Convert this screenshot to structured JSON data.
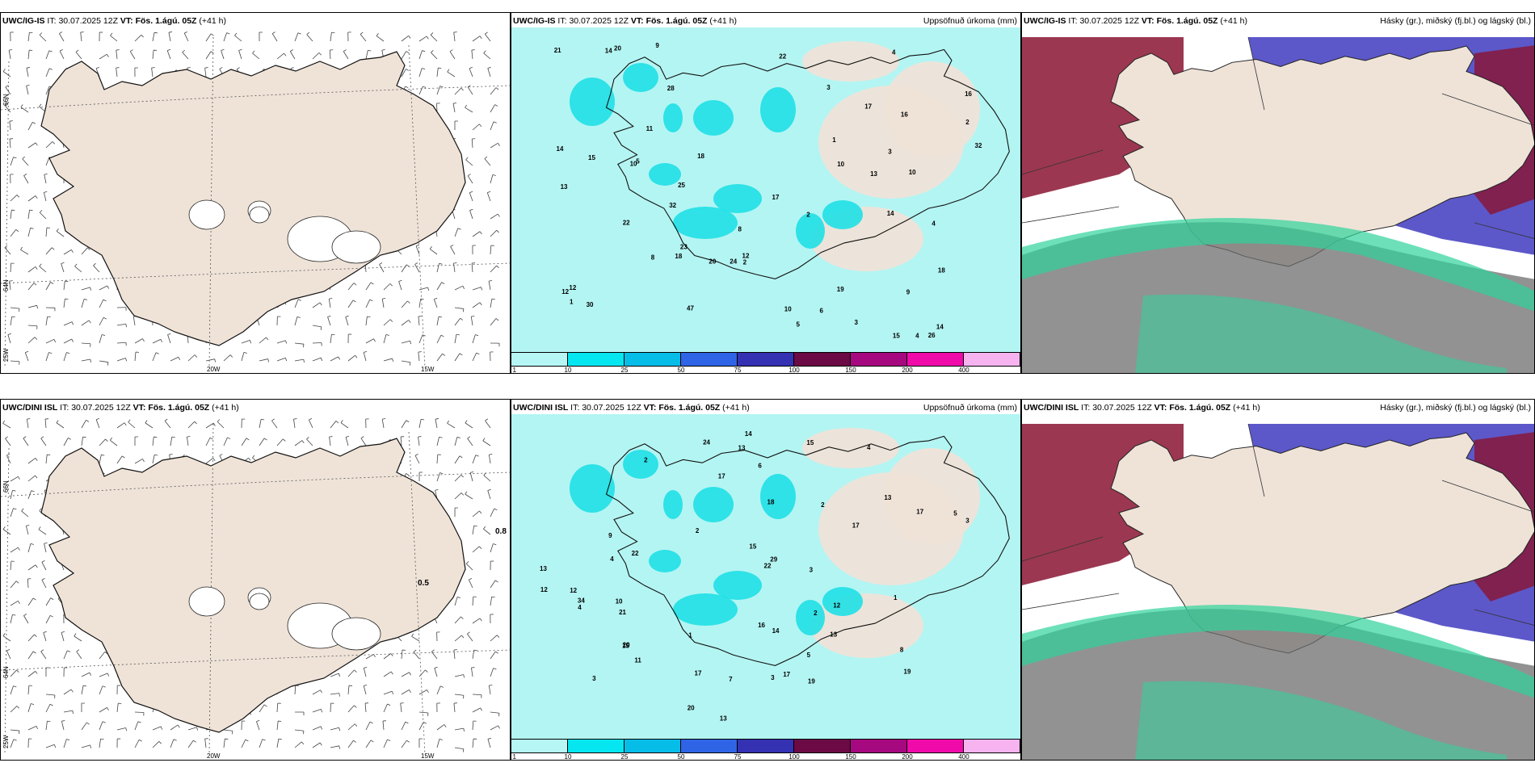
{
  "rows": [
    {
      "model": "UWC/IG-IS",
      "it_label": "IT:",
      "it_value": "30.07.2025 12Z",
      "vt_label": "VT:",
      "vt_value": "Fös. 1.ágú. 05Z",
      "lead": "(+41 h)",
      "wind_labels": []
    },
    {
      "model": "UWC/DINI ISL",
      "it_label": "IT:",
      "it_value": "30.07.2025 12Z",
      "vt_label": "VT:",
      "vt_value": "Fös. 1.ágú. 05Z",
      "lead": "(+41 h)",
      "wind_labels": [
        "0.8",
        "0.5"
      ]
    }
  ],
  "precip_title": "Uppsöfnuð úrkoma (mm)",
  "cloud_title": "Hásky (gr.), miðský (fj.bl.) og lágský (bl.)",
  "grid_labels": {
    "lat_66": "66N",
    "lat_64": "64N",
    "lon_20": "20W",
    "lon_15": "15W",
    "lon_25": "25W"
  },
  "colorbar": {
    "ticks": [
      "1",
      "10",
      "25",
      "50",
      "75",
      "100",
      "150",
      "200",
      "400"
    ],
    "colors": [
      "#b6f7f6",
      "#06e6f0",
      "#06bde8",
      "#2f64e6",
      "#3431b3",
      "#6b0a45",
      "#a5087f",
      "#ef0aa9",
      "#f6b3f0"
    ]
  },
  "colors": {
    "land": "#efe3d8",
    "sea_precip": "#b3f5f3",
    "cyan": "#1fe0e6",
    "high_cloud": "#6e6e6e",
    "mid_cloud": "#2fd39b",
    "low_cloud": "#4a46c3",
    "dark_red": "#8a1432"
  },
  "precip_numbers_top": [
    "8",
    "10",
    "14",
    "14",
    "26",
    "28",
    "24",
    "32",
    "18",
    "13",
    "10",
    "22",
    "21",
    "15",
    "25",
    "19",
    "17",
    "32",
    "16",
    "18",
    "4",
    "5",
    "6",
    "8",
    "9",
    "10",
    "10",
    "12",
    "16",
    "12",
    "23",
    "20",
    "30",
    "18",
    "17",
    "14",
    "15",
    "20",
    "22",
    "47",
    "13",
    "14",
    "4",
    "3",
    "2",
    "1",
    "12",
    "11",
    "9",
    "3",
    "5",
    "3",
    "2",
    "4",
    "2",
    "1"
  ],
  "precip_numbers_bottom": [
    "3",
    "4",
    "2",
    "13",
    "14",
    "22",
    "21",
    "20",
    "17",
    "17",
    "12",
    "14",
    "13",
    "22",
    "13",
    "24",
    "19",
    "13",
    "15",
    "20",
    "19",
    "13",
    "17",
    "29",
    "15",
    "17",
    "34",
    "15",
    "18",
    "12",
    "9",
    "11",
    "17",
    "16",
    "8",
    "4",
    "5",
    "3",
    "2",
    "1",
    "3",
    "6",
    "7",
    "10",
    "12",
    "4",
    "2",
    "3",
    "1",
    "5",
    "2"
  ]
}
